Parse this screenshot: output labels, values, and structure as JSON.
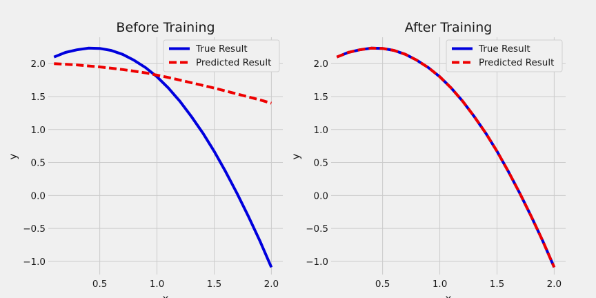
{
  "colors": {
    "background": "#f0f0f0",
    "grid": "#cbcbcb",
    "true_line": "#0000dd",
    "pred_line": "#ee0000"
  },
  "chart_data": [
    {
      "type": "line",
      "title": "Before Training",
      "xlabel": "x",
      "ylabel": "y",
      "xlim": [
        0.05,
        2.1
      ],
      "ylim": [
        -1.2,
        2.4
      ],
      "xticks": [
        0.5,
        1.0,
        1.5,
        2.0
      ],
      "xtick_labels": [
        "0.5",
        "1.0",
        "1.5",
        "2.0"
      ],
      "yticks": [
        -1.0,
        -0.5,
        0.0,
        0.5,
        1.0,
        1.5,
        2.0
      ],
      "ytick_labels": [
        "−1.0",
        "−0.5",
        "0.0",
        "0.5",
        "1.0",
        "1.5",
        "2.0"
      ],
      "grid": true,
      "legend_position": "top-right",
      "series": [
        {
          "name": "True Result",
          "style": "solid",
          "color": "#0000dd",
          "x": [
            0.1,
            0.2,
            0.3,
            0.4,
            0.5,
            0.6,
            0.7,
            0.8,
            0.9,
            1.0,
            1.1,
            1.2,
            1.3,
            1.4,
            1.5,
            1.6,
            1.7,
            1.8,
            1.9,
            2.0
          ],
          "y": [
            2.1,
            2.17,
            2.21,
            2.235,
            2.23,
            2.2,
            2.14,
            2.05,
            1.94,
            1.8,
            1.63,
            1.43,
            1.2,
            0.95,
            0.67,
            0.36,
            0.03,
            -0.32,
            -0.69,
            -1.09
          ]
        },
        {
          "name": "Predicted Result",
          "style": "dashed",
          "color": "#ee0000",
          "x": [
            0.1,
            0.3,
            0.5,
            0.7,
            0.9,
            1.1,
            1.3,
            1.5,
            1.7,
            1.9,
            2.0
          ],
          "y": [
            2.0,
            1.98,
            1.95,
            1.91,
            1.86,
            1.79,
            1.71,
            1.63,
            1.54,
            1.45,
            1.4
          ]
        }
      ]
    },
    {
      "type": "line",
      "title": "After Training",
      "xlabel": "x",
      "ylabel": "y",
      "xlim": [
        0.05,
        2.1
      ],
      "ylim": [
        -1.2,
        2.4
      ],
      "xticks": [
        0.5,
        1.0,
        1.5,
        2.0
      ],
      "xtick_labels": [
        "0.5",
        "1.0",
        "1.5",
        "2.0"
      ],
      "yticks": [
        -1.0,
        -0.5,
        0.0,
        0.5,
        1.0,
        1.5,
        2.0
      ],
      "ytick_labels": [
        "−1.0",
        "−0.5",
        "0.0",
        "0.5",
        "1.0",
        "1.5",
        "2.0"
      ],
      "grid": true,
      "legend_position": "top-right",
      "series": [
        {
          "name": "True Result",
          "style": "solid",
          "color": "#0000dd",
          "x": [
            0.1,
            0.2,
            0.3,
            0.4,
            0.5,
            0.6,
            0.7,
            0.8,
            0.9,
            1.0,
            1.1,
            1.2,
            1.3,
            1.4,
            1.5,
            1.6,
            1.7,
            1.8,
            1.9,
            2.0
          ],
          "y": [
            2.1,
            2.17,
            2.21,
            2.235,
            2.23,
            2.2,
            2.14,
            2.05,
            1.94,
            1.8,
            1.63,
            1.43,
            1.2,
            0.95,
            0.67,
            0.36,
            0.03,
            -0.32,
            -0.69,
            -1.09
          ]
        },
        {
          "name": "Predicted Result",
          "style": "dashed",
          "color": "#ee0000",
          "x": [
            0.1,
            0.2,
            0.3,
            0.4,
            0.5,
            0.6,
            0.7,
            0.8,
            0.9,
            1.0,
            1.1,
            1.2,
            1.3,
            1.4,
            1.5,
            1.6,
            1.7,
            1.8,
            1.9,
            2.0
          ],
          "y": [
            2.1,
            2.17,
            2.21,
            2.235,
            2.23,
            2.2,
            2.14,
            2.05,
            1.94,
            1.8,
            1.63,
            1.43,
            1.2,
            0.95,
            0.67,
            0.36,
            0.03,
            -0.32,
            -0.69,
            -1.09
          ]
        }
      ]
    }
  ]
}
